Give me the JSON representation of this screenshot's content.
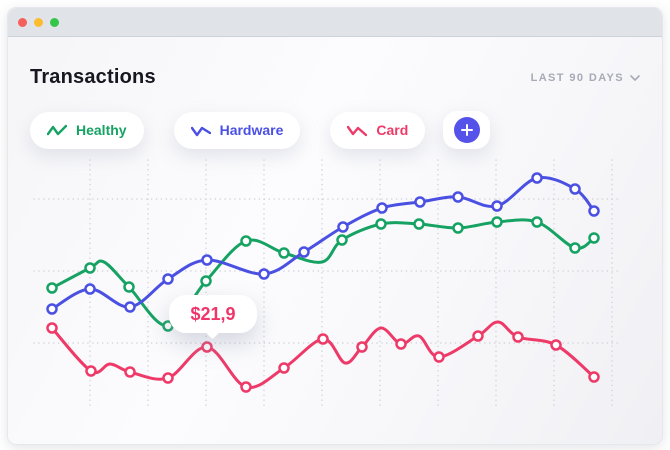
{
  "window": {
    "traffic_lights": [
      {
        "name": "close",
        "color": "#f5605a"
      },
      {
        "name": "minimize",
        "color": "#fbbc2e"
      },
      {
        "name": "maximize",
        "color": "#32c748"
      }
    ]
  },
  "header": {
    "title": "Transactions",
    "range_selector": {
      "label": "LAST 90 DAYS"
    }
  },
  "legend": [
    {
      "label": "Healthy",
      "color": "#16a263"
    },
    {
      "label": "Hardware",
      "color": "#4a50e2"
    },
    {
      "label": "Card",
      "color": "#ee3a68"
    }
  ],
  "add_series_button": {
    "color": "#5552ea"
  },
  "chart_data": {
    "type": "line",
    "title": "Transactions",
    "axes_visible": false,
    "legend_position": "top",
    "grid": {
      "style": "dotted",
      "color": "#d2d3db",
      "vertical_x": [
        90,
        148,
        206,
        264,
        322,
        380,
        438,
        496,
        554,
        612
      ],
      "horizontal_y": [
        199,
        271,
        343
      ],
      "x_range": [
        34,
        618
      ],
      "y_range": [
        160,
        408
      ]
    },
    "series": [
      {
        "name": "Card",
        "color": "#ee3a68",
        "points": [
          [
            52,
            328
          ],
          [
            91,
            371
          ],
          [
            110,
            364,
            0
          ],
          [
            130,
            372
          ],
          [
            168,
            378
          ],
          [
            207,
            347
          ],
          [
            246,
            387
          ],
          [
            284,
            368
          ],
          [
            323,
            339
          ],
          [
            345,
            363,
            0
          ],
          [
            362,
            347
          ],
          [
            381,
            328,
            0
          ],
          [
            401,
            344
          ],
          [
            419,
            336,
            0
          ],
          [
            439,
            357
          ],
          [
            478,
            336
          ],
          [
            498,
            322,
            0
          ],
          [
            518,
            337
          ],
          [
            556,
            345
          ],
          [
            594,
            377
          ]
        ]
      },
      {
        "name": "Healthy",
        "color": "#16a263",
        "points": [
          [
            52,
            288
          ],
          [
            90,
            268
          ],
          [
            104,
            262,
            0
          ],
          [
            129,
            287
          ],
          [
            168,
            326
          ],
          [
            206,
            281
          ],
          [
            246,
            241
          ],
          [
            284,
            253
          ],
          [
            322,
            262,
            0
          ],
          [
            342,
            240
          ],
          [
            381,
            224
          ],
          [
            419,
            224
          ],
          [
            458,
            228
          ],
          [
            497,
            222
          ],
          [
            537,
            222
          ],
          [
            575,
            248
          ],
          [
            594,
            238
          ]
        ]
      },
      {
        "name": "Hardware",
        "color": "#4a50e2",
        "points": [
          [
            52,
            309
          ],
          [
            90,
            289
          ],
          [
            130,
            307
          ],
          [
            168,
            279
          ],
          [
            207,
            260
          ],
          [
            264,
            274
          ],
          [
            304,
            252
          ],
          [
            343,
            227
          ],
          [
            382,
            208
          ],
          [
            420,
            202
          ],
          [
            458,
            197
          ],
          [
            497,
            206
          ],
          [
            537,
            178
          ],
          [
            575,
            189
          ],
          [
            594,
            211
          ]
        ]
      }
    ],
    "tooltip": {
      "text": "$21,9",
      "series": "Card",
      "anchor_x": 207,
      "anchor_y": 347
    }
  }
}
